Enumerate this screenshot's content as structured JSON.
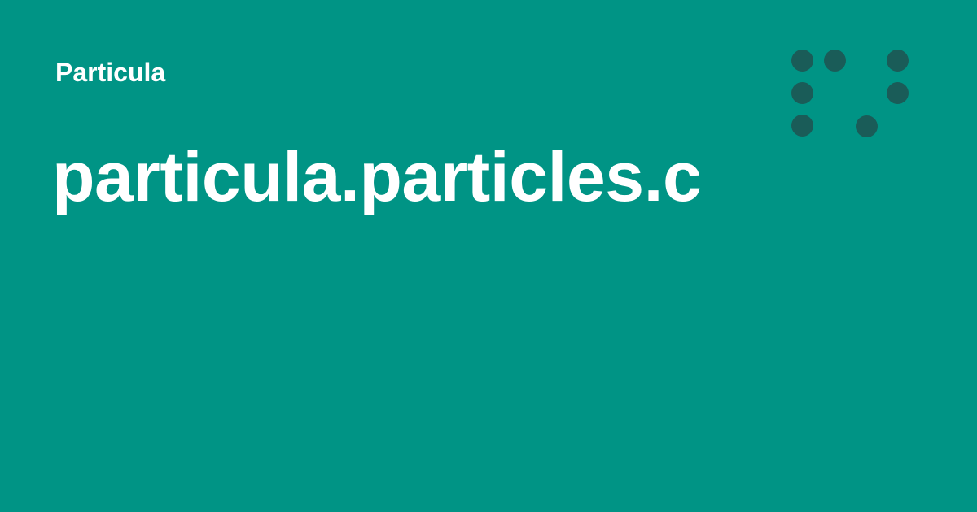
{
  "header": {
    "site_name": "Particula"
  },
  "main": {
    "title": "particula.particles.c"
  },
  "logo": {
    "icon": "particula-dot-logo-icon",
    "dot_color": "#1a5c58"
  },
  "colors": {
    "background": "#009485",
    "text": "#ffffff"
  }
}
